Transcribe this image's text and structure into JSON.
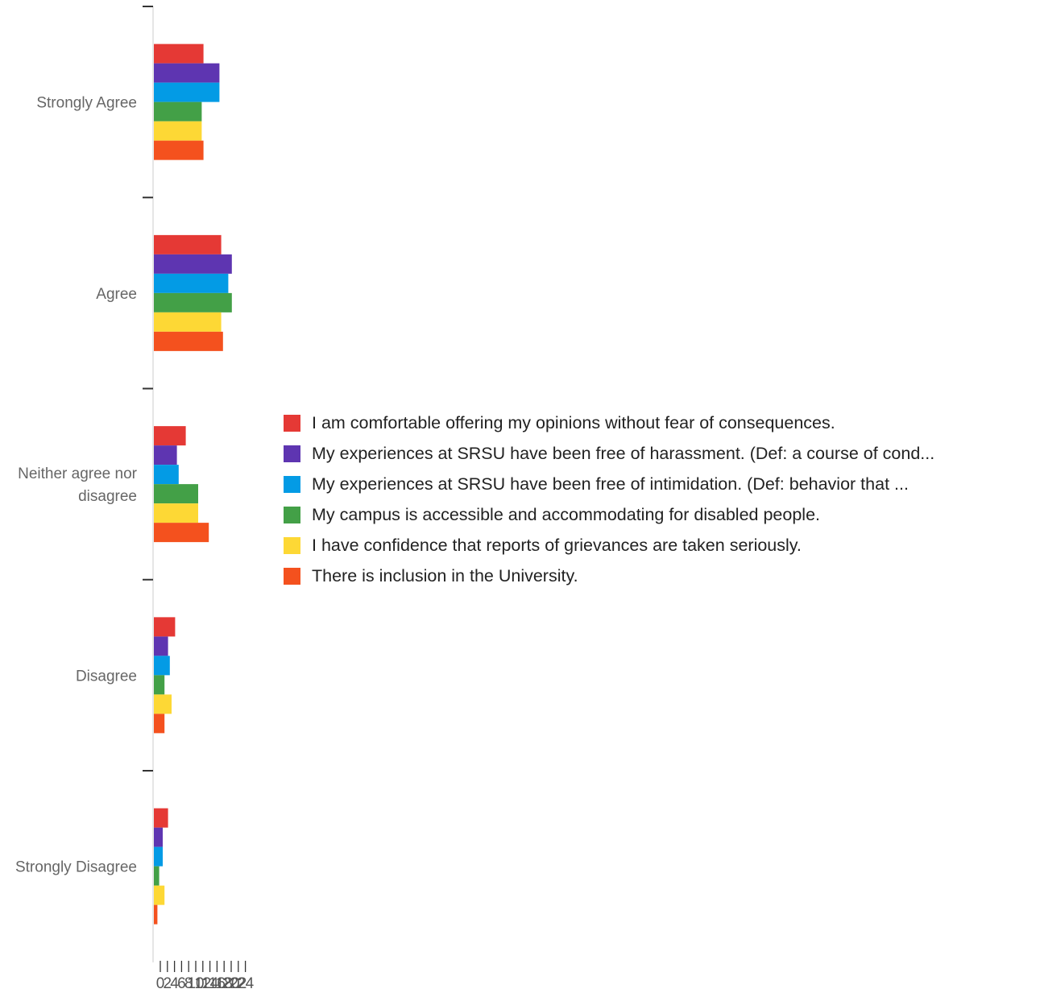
{
  "chart_data": {
    "type": "bar",
    "orientation": "horizontal",
    "categories": [
      "Strongly Agree",
      "Agree",
      "Neither agree nor disagree",
      "Disagree",
      "Strongly Disagree"
    ],
    "series": [
      {
        "name": "I am comfortable offering my opinions without fear of consequences.",
        "color": "#e53935",
        "values": [
          14,
          19,
          9,
          6,
          4
        ]
      },
      {
        "name": "My experiences at SRSU have been free of harassment. (Def: a course of cond...",
        "color": "#5e35b1",
        "values": [
          18.5,
          22,
          6.5,
          4,
          2.5
        ]
      },
      {
        "name": "My experiences at SRSU have been free of intimidation. (Def: behavior that ...",
        "color": "#039be5",
        "values": [
          18.5,
          21,
          7,
          4.5,
          2.5
        ]
      },
      {
        "name": "My campus is accessible and accommodating for disabled people.",
        "color": "#43a047",
        "values": [
          13.5,
          22,
          12.5,
          3,
          1.5
        ]
      },
      {
        "name": "I have confidence that reports of grievances are taken seriously.",
        "color": "#fdd835",
        "values": [
          13.5,
          19,
          12.5,
          5,
          3
        ]
      },
      {
        "name": "There is inclusion in the University.",
        "color": "#f4511e",
        "values": [
          14,
          19.5,
          15.5,
          3,
          1
        ]
      }
    ],
    "xlim": [
      0,
      24
    ],
    "xticks": [
      0,
      2,
      4,
      6,
      8,
      10,
      12,
      14,
      16,
      18,
      20,
      22,
      24
    ],
    "legend_position": "right",
    "grid": false
  }
}
